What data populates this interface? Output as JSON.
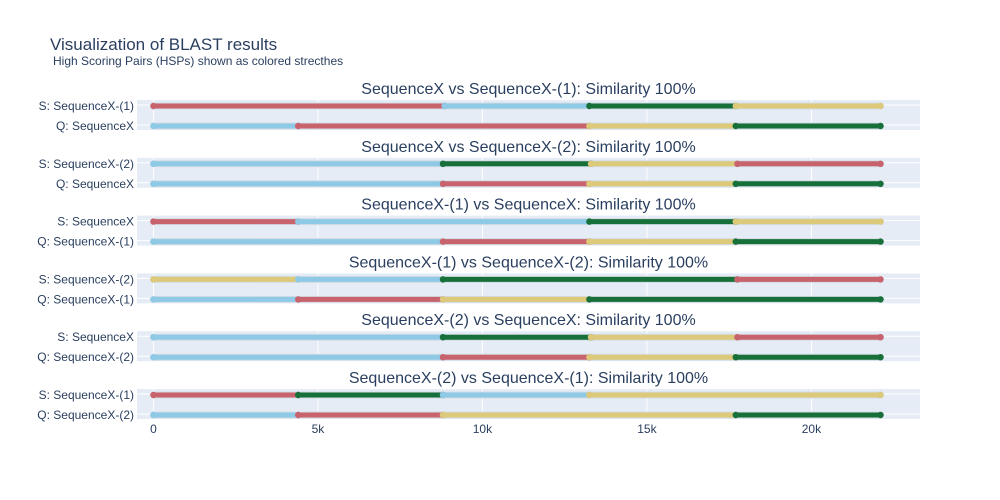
{
  "chart_data": {
    "type": "line",
    "title": "Visualization of BLAST results",
    "subtitle": "High Scoring Pairs (HSPs) shown as colored strecthes",
    "xlim": [
      -500,
      23300
    ],
    "x_ticks": [
      {
        "value": 0,
        "label": "0"
      },
      {
        "value": 5000,
        "label": "5k"
      },
      {
        "value": 10000,
        "label": "10k"
      },
      {
        "value": 15000,
        "label": "15k"
      },
      {
        "value": 20000,
        "label": "20k"
      }
    ],
    "colors": {
      "a": "#c8636e",
      "b": "#8ecae6",
      "c": "#17703a",
      "d": "#dcc97a"
    },
    "grid_color": "#ffffff",
    "panel_bg": "#e5ecf6",
    "backbone_color": "#d4dbe4",
    "panels": [
      {
        "title": "SequenceX vs SequenceX-(1): Similarity 100%",
        "rows": [
          {
            "label": "S: SequenceX-(1)",
            "length": 22100,
            "segments": [
              {
                "start": 0,
                "end": 8850,
                "color": "a"
              },
              {
                "start": 8850,
                "end": 13250,
                "color": "b"
              },
              {
                "start": 13250,
                "end": 17700,
                "color": "c"
              },
              {
                "start": 17700,
                "end": 22100,
                "color": "d"
              }
            ]
          },
          {
            "label": "Q: SequenceX",
            "length": 22100,
            "segments": [
              {
                "start": 0,
                "end": 4400,
                "color": "b"
              },
              {
                "start": 4400,
                "end": 13250,
                "color": "a"
              },
              {
                "start": 13250,
                "end": 17700,
                "color": "d"
              },
              {
                "start": 17700,
                "end": 22100,
                "color": "c"
              }
            ]
          }
        ]
      },
      {
        "title": "SequenceX vs SequenceX-(2): Similarity 100%",
        "rows": [
          {
            "label": "S: SequenceX-(2)",
            "length": 22100,
            "segments": [
              {
                "start": 0,
                "end": 8800,
                "color": "b"
              },
              {
                "start": 8800,
                "end": 13300,
                "color": "c"
              },
              {
                "start": 13300,
                "end": 17750,
                "color": "d"
              },
              {
                "start": 17750,
                "end": 22100,
                "color": "a"
              }
            ]
          },
          {
            "label": "Q: SequenceX",
            "length": 22100,
            "segments": [
              {
                "start": 0,
                "end": 8800,
                "color": "b"
              },
              {
                "start": 8800,
                "end": 13250,
                "color": "a"
              },
              {
                "start": 13250,
                "end": 17700,
                "color": "d"
              },
              {
                "start": 17700,
                "end": 22100,
                "color": "c"
              }
            ]
          }
        ]
      },
      {
        "title": "SequenceX-(1) vs SequenceX: Similarity 100%",
        "rows": [
          {
            "label": "S: SequenceX",
            "length": 22100,
            "segments": [
              {
                "start": 0,
                "end": 4400,
                "color": "a"
              },
              {
                "start": 4400,
                "end": 13250,
                "color": "b"
              },
              {
                "start": 13250,
                "end": 17700,
                "color": "c"
              },
              {
                "start": 17700,
                "end": 22100,
                "color": "d"
              }
            ]
          },
          {
            "label": "Q: SequenceX-(1)",
            "length": 22100,
            "segments": [
              {
                "start": 0,
                "end": 8800,
                "color": "b"
              },
              {
                "start": 8800,
                "end": 13250,
                "color": "a"
              },
              {
                "start": 13250,
                "end": 17700,
                "color": "d"
              },
              {
                "start": 17700,
                "end": 22100,
                "color": "c"
              }
            ]
          }
        ]
      },
      {
        "title": "SequenceX-(1) vs SequenceX-(2): Similarity 100%",
        "rows": [
          {
            "label": "S: SequenceX-(2)",
            "length": 22100,
            "segments": [
              {
                "start": 0,
                "end": 4400,
                "color": "d"
              },
              {
                "start": 4400,
                "end": 8800,
                "color": "b"
              },
              {
                "start": 8800,
                "end": 17750,
                "color": "c"
              },
              {
                "start": 17750,
                "end": 22100,
                "color": "a"
              }
            ]
          },
          {
            "label": "Q: SequenceX-(1)",
            "length": 22100,
            "segments": [
              {
                "start": 0,
                "end": 4400,
                "color": "b"
              },
              {
                "start": 4400,
                "end": 8800,
                "color": "a"
              },
              {
                "start": 8800,
                "end": 13250,
                "color": "d"
              },
              {
                "start": 13250,
                "end": 22100,
                "color": "c"
              }
            ]
          }
        ]
      },
      {
        "title": "SequenceX-(2) vs SequenceX: Similarity 100%",
        "rows": [
          {
            "label": "S: SequenceX",
            "length": 22100,
            "segments": [
              {
                "start": 0,
                "end": 8800,
                "color": "b"
              },
              {
                "start": 8800,
                "end": 13300,
                "color": "c"
              },
              {
                "start": 13300,
                "end": 17750,
                "color": "d"
              },
              {
                "start": 17750,
                "end": 22100,
                "color": "a"
              }
            ]
          },
          {
            "label": "Q: SequenceX-(2)",
            "length": 22100,
            "segments": [
              {
                "start": 0,
                "end": 8800,
                "color": "b"
              },
              {
                "start": 8800,
                "end": 13250,
                "color": "a"
              },
              {
                "start": 13250,
                "end": 17700,
                "color": "d"
              },
              {
                "start": 17700,
                "end": 22100,
                "color": "c"
              }
            ]
          }
        ]
      },
      {
        "title": "SequenceX-(2) vs SequenceX-(1): Similarity 100%",
        "rows": [
          {
            "label": "S: SequenceX-(1)",
            "length": 22100,
            "segments": [
              {
                "start": 0,
                "end": 4400,
                "color": "a"
              },
              {
                "start": 4400,
                "end": 8800,
                "color": "c"
              },
              {
                "start": 8800,
                "end": 13250,
                "color": "b"
              },
              {
                "start": 13250,
                "end": 22100,
                "color": "d"
              }
            ]
          },
          {
            "label": "Q: SequenceX-(2)",
            "length": 22100,
            "segments": [
              {
                "start": 0,
                "end": 4400,
                "color": "b"
              },
              {
                "start": 4400,
                "end": 8800,
                "color": "a"
              },
              {
                "start": 8800,
                "end": 17700,
                "color": "d"
              },
              {
                "start": 17700,
                "end": 22100,
                "color": "c"
              }
            ]
          }
        ]
      }
    ]
  }
}
